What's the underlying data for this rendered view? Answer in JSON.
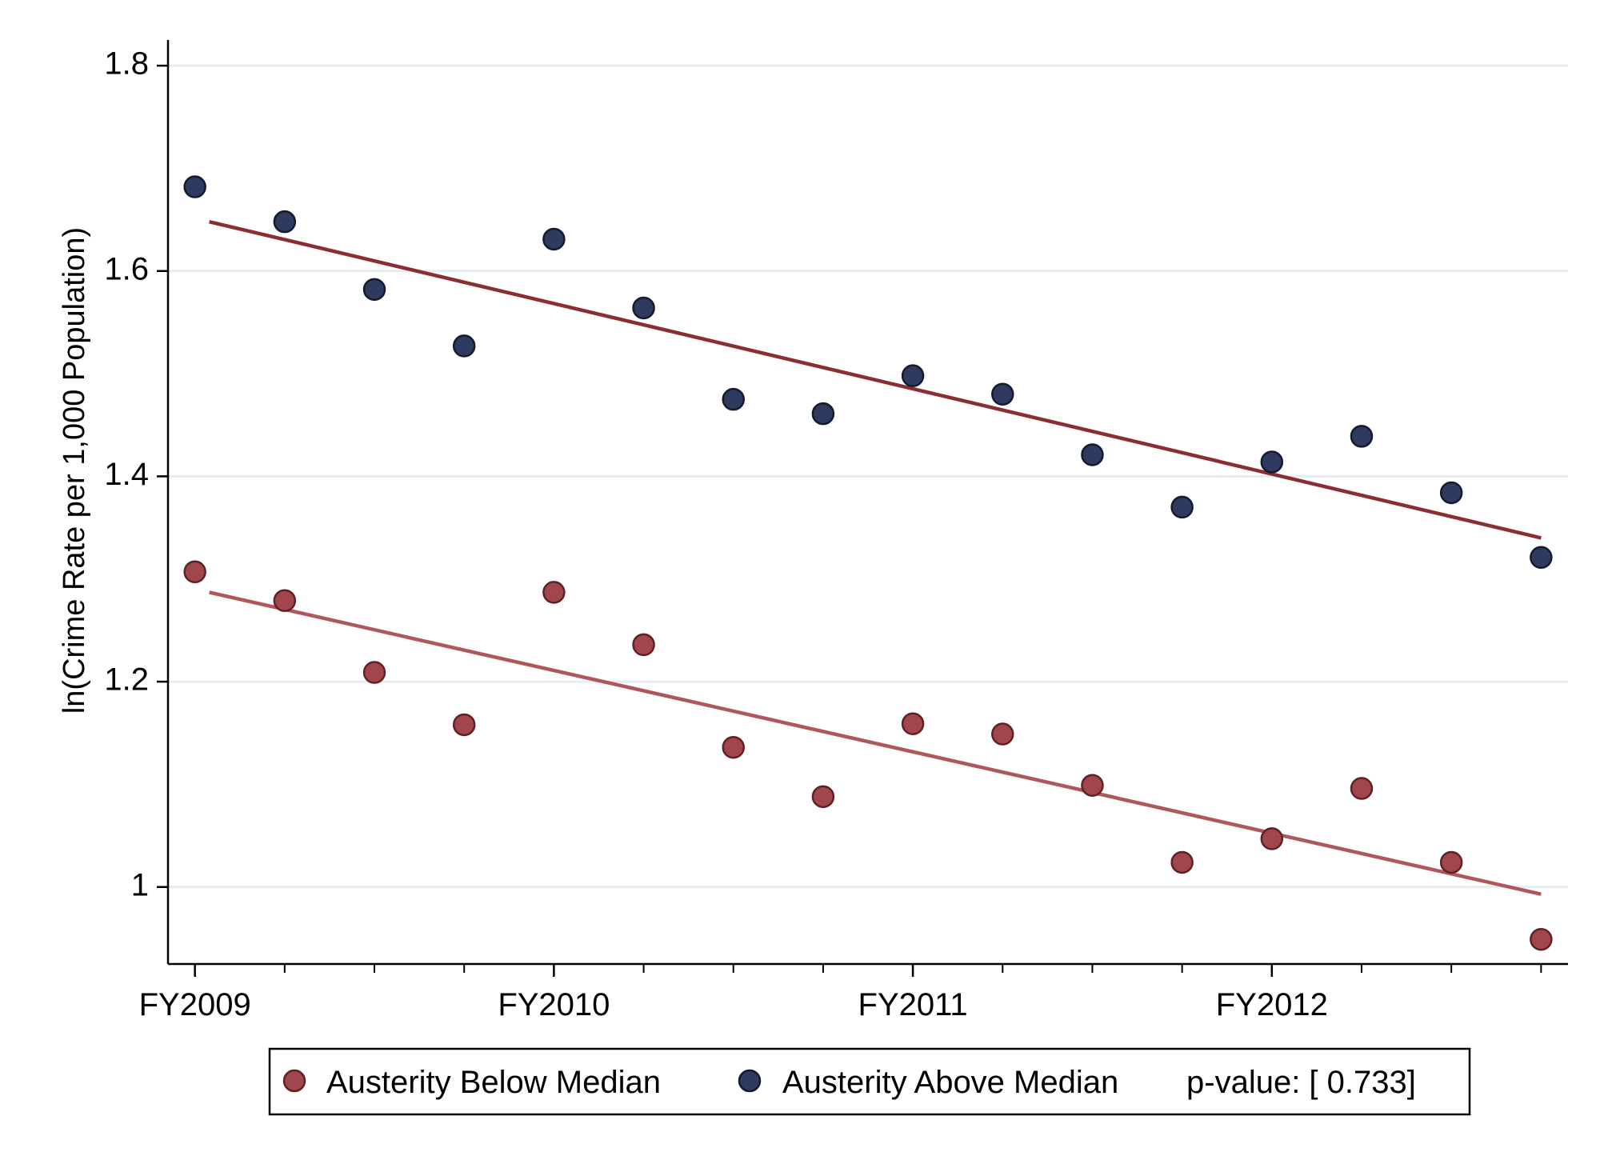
{
  "chart_data": {
    "type": "scatter",
    "title": "",
    "xlabel": "",
    "ylabel": "ln(Crime Rate per 1,000 Population)",
    "x_quarters": [
      0,
      1,
      2,
      3,
      4,
      5,
      6,
      7,
      8,
      9,
      10,
      11,
      12,
      13,
      14,
      15
    ],
    "xlim": [
      -0.3,
      15.3
    ],
    "ylim": [
      0.925,
      1.825
    ],
    "x_ticks": [
      {
        "pos": 0,
        "label": "FY2009"
      },
      {
        "pos": 4,
        "label": "FY2010"
      },
      {
        "pos": 8,
        "label": "FY2011"
      },
      {
        "pos": 12,
        "label": "FY2012"
      }
    ],
    "x_minor_ticks": [
      1,
      2,
      3,
      5,
      6,
      7,
      9,
      10,
      11,
      13,
      14,
      15
    ],
    "y_ticks": [
      {
        "value": 1.0,
        "label": "1"
      },
      {
        "value": 1.2,
        "label": "1.2"
      },
      {
        "value": 1.4,
        "label": "1.4"
      },
      {
        "value": 1.6,
        "label": "1.6"
      },
      {
        "value": 1.8,
        "label": "1.8"
      }
    ],
    "grid": true,
    "series": [
      {
        "name": "Austerity Below Median",
        "marker_color": "#a0464c",
        "line_color": "#b0575c",
        "values": [
          1.307,
          1.279,
          1.209,
          1.158,
          1.287,
          1.236,
          1.136,
          1.088,
          1.159,
          1.149,
          1.099,
          1.024,
          1.047,
          1.096,
          1.024,
          0.949
        ],
        "fit": {
          "start": 1.287,
          "end": 0.993
        }
      },
      {
        "name": "Austerity Above Median",
        "marker_color": "#2e3a5f",
        "line_color": "#8b2e32",
        "values": [
          1.682,
          1.648,
          1.582,
          1.527,
          1.631,
          1.564,
          1.475,
          1.461,
          1.498,
          1.48,
          1.421,
          1.37,
          1.414,
          1.439,
          1.384,
          1.321
        ],
        "fit": {
          "start": 1.648,
          "end": 1.34
        }
      }
    ],
    "legend": {
      "position": "bottom",
      "items": [
        "Austerity Below Median",
        "Austerity Above Median"
      ],
      "note": "p-value: [ 0.733]"
    }
  },
  "colors": {
    "gridline": "#e6ecef",
    "axis": "#000000",
    "below_marker": "#a0464c",
    "above_marker": "#2e3a5f"
  }
}
